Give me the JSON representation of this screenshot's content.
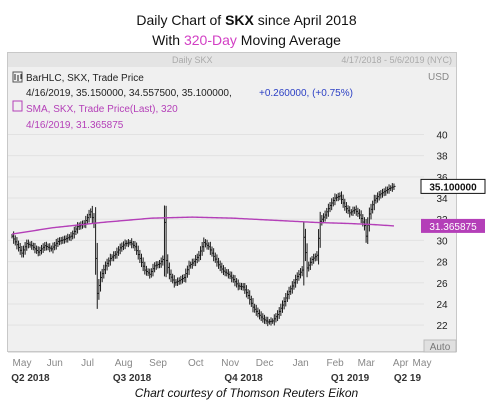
{
  "title": {
    "line1_prefix": "Daily Chart of ",
    "ticker": "SKX",
    "line1_suffix": " since April 2018",
    "line2_prefix": "With ",
    "line2_accent": "320-Day",
    "line2_suffix": " Moving Average"
  },
  "panel": {
    "header_left": "Daily SKX",
    "header_right": "4/17/2018 - 5/6/2019 (NYC)",
    "currency": "USD",
    "auto_button": "Auto"
  },
  "legend": {
    "price_line": "BarHLC, SKX, Trade Price",
    "price_values": "4/16/2019, 35.150000, 34.557500, 35.100000,",
    "price_change": "+0.260000, (+0.75%)",
    "sma_line": "SMA, SKX, Trade Price(Last), 320",
    "sma_values": "4/16/2019, 31.365875"
  },
  "colors": {
    "price": "#1a1a1a",
    "sma": "#b43fb8",
    "change": "#2b3fc4",
    "accent": "#d23fc4",
    "panel_bg": "#f0f0f0",
    "last_price_tag": "#111111",
    "sma_tag": "#b43fb8"
  },
  "footer": "Chart courtesy of Thomson Reuters Eikon",
  "chart_data": {
    "type": "bar",
    "subtype": "ohlc_hlc",
    "ylim": [
      20.6,
      42.5
    ],
    "y_ticks": [
      22,
      24,
      26,
      28,
      30,
      32,
      34,
      36,
      38,
      40
    ],
    "x_months": [
      "May",
      "Jun",
      "Jul",
      "Aug",
      "Sep",
      "Oct",
      "Nov",
      "Dec",
      "Jan",
      "Feb",
      "Mar",
      "Apr",
      "May"
    ],
    "x_quarters": [
      "Q2 2018",
      "Q3 2018",
      "Q4 2018",
      "Q1 2019",
      "Q2 19"
    ],
    "last_price_label": "35.100000",
    "sma_label": "31.365875",
    "series": [
      {
        "name": "SKX",
        "points": [
          [
            0,
            30.4
          ],
          [
            3,
            29.6
          ],
          [
            6,
            28.8
          ],
          [
            9,
            29.7
          ],
          [
            12,
            29.5
          ],
          [
            16,
            28.9
          ],
          [
            20,
            29.5
          ],
          [
            24,
            29.2
          ],
          [
            28,
            29.9
          ],
          [
            32,
            30.1
          ],
          [
            36,
            30.4
          ],
          [
            40,
            31.3
          ],
          [
            44,
            31.6
          ],
          [
            48,
            32.7
          ],
          [
            50,
            31.6
          ],
          [
            52,
            25.0
          ],
          [
            54,
            26.5
          ],
          [
            57,
            27.6
          ],
          [
            60,
            28.3
          ],
          [
            63,
            28.7
          ],
          [
            66,
            29.3
          ],
          [
            69,
            29.7
          ],
          [
            72,
            29.8
          ],
          [
            75,
            29.4
          ],
          [
            78,
            28.3
          ],
          [
            81,
            27.2
          ],
          [
            84,
            26.8
          ],
          [
            87,
            27.6
          ],
          [
            90,
            27.8
          ],
          [
            92,
            28.2
          ],
          [
            93,
            31.7
          ],
          [
            94,
            28.1
          ],
          [
            96,
            26.8
          ],
          [
            99,
            26.0
          ],
          [
            102,
            26.2
          ],
          [
            105,
            26.5
          ],
          [
            108,
            27.6
          ],
          [
            111,
            28.0
          ],
          [
            114,
            28.6
          ],
          [
            117,
            29.8
          ],
          [
            120,
            29.4
          ],
          [
            123,
            28.5
          ],
          [
            126,
            27.7
          ],
          [
            129,
            27.1
          ],
          [
            132,
            26.8
          ],
          [
            135,
            26.3
          ],
          [
            138,
            25.7
          ],
          [
            141,
            25.6
          ],
          [
            144,
            24.8
          ],
          [
            147,
            23.7
          ],
          [
            150,
            23.1
          ],
          [
            153,
            22.6
          ],
          [
            156,
            22.3
          ],
          [
            159,
            22.4
          ],
          [
            162,
            23.0
          ],
          [
            165,
            23.9
          ],
          [
            168,
            24.9
          ],
          [
            171,
            25.7
          ],
          [
            174,
            26.6
          ],
          [
            177,
            27.2
          ],
          [
            178,
            30.3
          ],
          [
            180,
            27.4
          ],
          [
            183,
            28.2
          ],
          [
            186,
            28.6
          ],
          [
            188,
            31.8
          ],
          [
            191,
            32.4
          ],
          [
            194,
            33.3
          ],
          [
            197,
            34.0
          ],
          [
            200,
            34.2
          ],
          [
            203,
            33.2
          ],
          [
            206,
            32.6
          ],
          [
            209,
            32.9
          ],
          [
            212,
            32.4
          ],
          [
            215,
            31.4
          ],
          [
            216,
            30.4
          ],
          [
            218,
            32.5
          ],
          [
            221,
            33.8
          ],
          [
            224,
            34.3
          ],
          [
            227,
            34.6
          ],
          [
            230,
            34.9
          ],
          [
            233,
            35.1
          ]
        ]
      },
      {
        "name": "SMA 320",
        "points": [
          [
            0,
            30.6
          ],
          [
            25,
            31.2
          ],
          [
            55,
            31.7
          ],
          [
            85,
            32.1
          ],
          [
            110,
            32.2
          ],
          [
            135,
            32.1
          ],
          [
            160,
            31.9
          ],
          [
            185,
            31.7
          ],
          [
            205,
            31.6
          ],
          [
            220,
            31.5
          ],
          [
            233,
            31.37
          ]
        ]
      }
    ]
  }
}
